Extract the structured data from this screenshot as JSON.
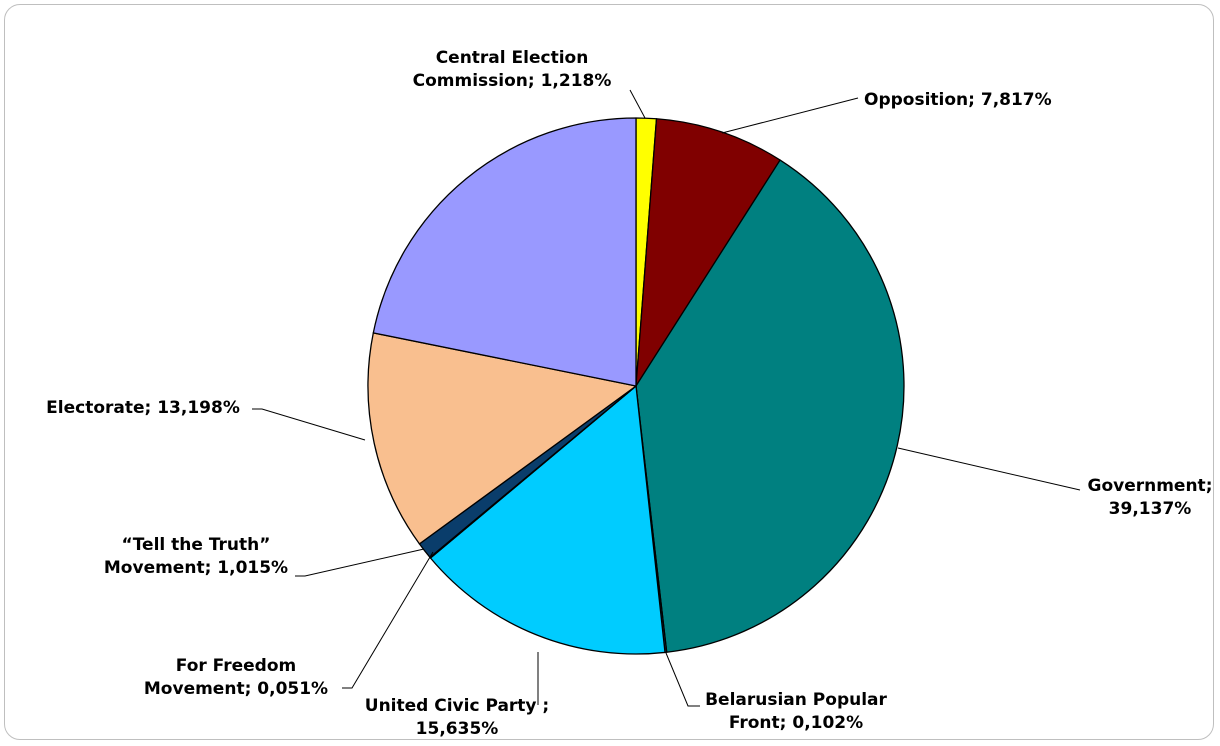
{
  "chart_data": {
    "type": "pie",
    "start_angle_deg": 90,
    "direction": "clockwise",
    "slices": [
      {
        "label_lines": [
          "Central Election",
          "Commission; 1,218%"
        ],
        "value": 1.218,
        "color": "#FFFF00"
      },
      {
        "label_lines": [
          "Opposition; 7,817%"
        ],
        "value": 7.817,
        "color": "#800000"
      },
      {
        "label_lines": [
          "Government;",
          "39,137%"
        ],
        "value": 39.137,
        "color": "#008080"
      },
      {
        "label_lines": [
          "Belarusian Popular",
          "Front; 0,102%"
        ],
        "value": 0.102,
        "color": "#0A3D6B"
      },
      {
        "label_lines": [
          "United Civic Party ;",
          "15,635%"
        ],
        "value": 15.635,
        "color": "#00CCFF"
      },
      {
        "label_lines": [
          "For Freedom",
          "Movement; 0,051%"
        ],
        "value": 0.051,
        "color": "#FFFF66"
      },
      {
        "label_lines": [
          "“Tell the Truth”",
          "Movement; 1,015%"
        ],
        "value": 1.015,
        "color": "#0A3D6B"
      },
      {
        "label_lines": [
          "Electorate; 13,198%"
        ],
        "value": 13.198,
        "color": "#F9BF8F"
      },
      {
        "label_lines": [],
        "value": 21.827,
        "color": "#9999FF"
      }
    ]
  }
}
